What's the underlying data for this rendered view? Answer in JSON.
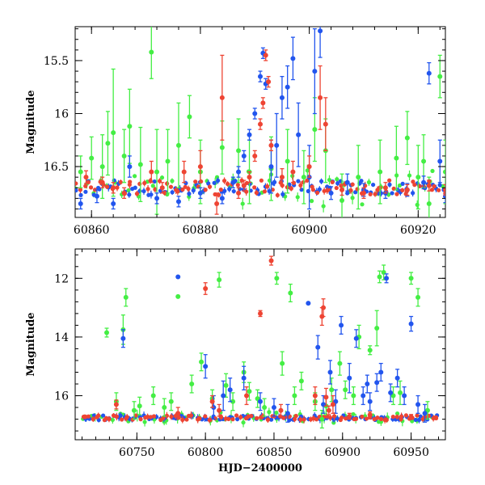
{
  "colors": {
    "green": "#44ee44",
    "blue": "#2255ee",
    "red": "#ee4433"
  },
  "chart_data": [
    {
      "type": "scatter",
      "title": "",
      "xlabel": "",
      "ylabel": "Magnitude",
      "xlim": [
        60857,
        60925
      ],
      "ylim": [
        16.98,
        15.18
      ],
      "xticks": [
        60860,
        60880,
        60900,
        60920
      ],
      "xtick_labels": [
        "60860",
        "60880",
        "60900",
        "60920"
      ],
      "yticks": [
        15.5,
        16,
        16.5
      ],
      "ytick_labels": [
        "15.5",
        "16",
        "16.5"
      ],
      "baseline": {
        "x0": 60857,
        "x1": 60925,
        "y": 16.7,
        "scatter": 0.07
      },
      "series": [
        {
          "name": "green",
          "color_key": "green",
          "points": [
            [
              60858,
              16.55
            ],
            [
              60860,
              16.42
            ],
            [
              60862,
              16.5
            ],
            [
              60863,
              16.28
            ],
            [
              60864,
              16.18
            ],
            [
              60866,
              16.4
            ],
            [
              60867,
              16.12
            ],
            [
              60869,
              16.48
            ],
            [
              60871,
              15.42
            ],
            [
              60872,
              16.55
            ],
            [
              60874,
              16.45
            ],
            [
              60876,
              16.3
            ],
            [
              60878,
              16.03
            ],
            [
              60880,
              16.55
            ],
            [
              60884,
              16.32
            ],
            [
              60887,
              16.35
            ],
            [
              60889,
              16.55
            ],
            [
              60893,
              16.52
            ],
            [
              60896,
              16.45
            ],
            [
              60899,
              16.6
            ],
            [
              60901,
              16.15
            ],
            [
              60903,
              16.35
            ],
            [
              60906,
              16.82
            ],
            [
              60909,
              16.6
            ],
            [
              60913,
              16.55
            ],
            [
              60916,
              16.42
            ],
            [
              60918,
              16.23
            ],
            [
              60920,
              16.6
            ],
            [
              60921,
              16.45
            ],
            [
              60922,
              16.85
            ],
            [
              60924,
              15.65
            ],
            [
              60925,
              16.55
            ]
          ],
          "errors": [
            0.15,
            0.2,
            0.3,
            0.3,
            0.6,
            0.25,
            0.35,
            0.35,
            0.25,
            0.4,
            0.3,
            0.4,
            0.2,
            0.3,
            0.25,
            0.3,
            0.3,
            0.3,
            0.3,
            0.25,
            0.3,
            0.3,
            0.25,
            0.3,
            0.3,
            0.3,
            0.25,
            0.3,
            0.25,
            0.25,
            0.2,
            0.3
          ]
        },
        {
          "name": "blue",
          "color_key": "blue",
          "points": [
            [
              60858,
              16.85
            ],
            [
              60861,
              16.78
            ],
            [
              60864,
              16.85
            ],
            [
              60867,
              16.5
            ],
            [
              60872,
              16.8
            ],
            [
              60876,
              16.83
            ],
            [
              60880,
              16.75
            ],
            [
              60884,
              16.8
            ],
            [
              60886,
              16.65
            ],
            [
              60887,
              16.55
            ],
            [
              60888,
              16.4
            ],
            [
              60889,
              16.2
            ],
            [
              60890,
              16.0
            ],
            [
              60891,
              15.65
            ],
            [
              60891.5,
              15.43
            ],
            [
              60892,
              15.72
            ],
            [
              60893,
              16.5
            ],
            [
              60894,
              16.3
            ],
            [
              60895,
              15.85
            ],
            [
              60896,
              15.75
            ],
            [
              60897,
              15.48
            ],
            [
              60898,
              16.2
            ],
            [
              60900,
              16.6
            ],
            [
              60901,
              15.6
            ],
            [
              60902,
              15.22
            ],
            [
              60904,
              16.75
            ],
            [
              60907,
              16.65
            ],
            [
              60910,
              16.72
            ],
            [
              60914,
              16.75
            ],
            [
              60918,
              16.72
            ],
            [
              60921,
              16.65
            ],
            [
              60922,
              15.62
            ],
            [
              60924,
              16.45
            ],
            [
              60925,
              16.78
            ]
          ],
          "errors": [
            0.05,
            0.06,
            0.05,
            0.1,
            0.05,
            0.05,
            0.05,
            0.05,
            0.05,
            0.05,
            0.05,
            0.05,
            0.05,
            0.05,
            0.05,
            0.05,
            0.25,
            0.3,
            0.2,
            0.2,
            0.2,
            0.3,
            0.3,
            0.4,
            0.25,
            0.06,
            0.08,
            0.06,
            0.05,
            0.06,
            0.06,
            0.1,
            0.2,
            0.06
          ]
        },
        {
          "name": "red",
          "color_key": "red",
          "points": [
            [
              60859,
              16.6
            ],
            [
              60862,
              16.65
            ],
            [
              60864,
              16.7
            ],
            [
              60866,
              16.75
            ],
            [
              60871,
              16.55
            ],
            [
              60873,
              16.7
            ],
            [
              60877,
              16.55
            ],
            [
              60880,
              16.5
            ],
            [
              60883,
              16.85
            ],
            [
              60884,
              15.85
            ],
            [
              60887,
              16.75
            ],
            [
              60888,
              16.68
            ],
            [
              60889,
              16.6
            ],
            [
              60890,
              16.4
            ],
            [
              60891,
              16.1
            ],
            [
              60891.5,
              15.9
            ],
            [
              60892,
              15.45
            ],
            [
              60892.5,
              15.7
            ],
            [
              60893,
              16.3
            ],
            [
              60895,
              16.6
            ],
            [
              60897,
              16.55
            ],
            [
              60900,
              16.5
            ],
            [
              60902,
              15.85
            ],
            [
              60903,
              16.1
            ],
            [
              60906,
              16.72
            ],
            [
              60910,
              16.75
            ],
            [
              60914,
              16.7
            ],
            [
              60918,
              16.72
            ],
            [
              60922,
              16.68
            ],
            [
              60925,
              16.72
            ]
          ],
          "errors": [
            0.06,
            0.05,
            0.05,
            0.05,
            0.1,
            0.05,
            0.1,
            0.15,
            0.1,
            0.4,
            0.05,
            0.05,
            0.05,
            0.05,
            0.05,
            0.05,
            0.05,
            0.05,
            0.05,
            0.08,
            0.1,
            0.1,
            0.3,
            0.25,
            0.05,
            0.05,
            0.05,
            0.05,
            0.05,
            0.05
          ]
        }
      ]
    },
    {
      "type": "scatter",
      "title": "",
      "xlabel": "HJD−2400000",
      "ylabel": "Magnitude",
      "xlim": [
        60705,
        60975
      ],
      "ylim": [
        17.5,
        11
      ],
      "xticks": [
        60750,
        60800,
        60850,
        60900,
        60950
      ],
      "xtick_labels": [
        "60750",
        "60800",
        "60850",
        "60900",
        "60950"
      ],
      "yticks": [
        12,
        14,
        16
      ],
      "ytick_labels": [
        "12",
        "14",
        "16"
      ],
      "baseline": {
        "x0": 60710,
        "x1": 60970,
        "y": 16.75,
        "scatter": 0.08
      },
      "series": [
        {
          "name": "green",
          "color_key": "green",
          "points": [
            [
              60728,
              13.85
            ],
            [
              60735,
              16.2
            ],
            [
              60740,
              13.75
            ],
            [
              60742,
              12.65
            ],
            [
              60748,
              16.5
            ],
            [
              60752,
              16.35
            ],
            [
              60762,
              16.0
            ],
            [
              60770,
              16.4
            ],
            [
              60775,
              16.2
            ],
            [
              60780,
              12.62
            ],
            [
              60790,
              15.6
            ],
            [
              60797,
              14.85
            ],
            [
              60805,
              16.1
            ],
            [
              60810,
              12.05
            ],
            [
              60815,
              15.65
            ],
            [
              60820,
              16.2
            ],
            [
              60828,
              15.2
            ],
            [
              60832,
              15.85
            ],
            [
              60838,
              16.1
            ],
            [
              60843,
              16.4
            ],
            [
              60852,
              12.0
            ],
            [
              60856,
              14.9
            ],
            [
              60862,
              12.5
            ],
            [
              60865,
              16.0
            ],
            [
              60870,
              15.5
            ],
            [
              60880,
              16.2
            ],
            [
              60885,
              16.8
            ],
            [
              60888,
              16.35
            ],
            [
              60892,
              15.8
            ],
            [
              60898,
              14.9
            ],
            [
              60902,
              15.8
            ],
            [
              60908,
              16.0
            ],
            [
              60912,
              14.0
            ],
            [
              60920,
              14.45
            ],
            [
              60925,
              13.7
            ],
            [
              60927,
              11.95
            ],
            [
              60930,
              11.8
            ],
            [
              60937,
              16.0
            ],
            [
              60942,
              15.9
            ],
            [
              60950,
              12.0
            ],
            [
              60955,
              12.65
            ],
            [
              60962,
              16.5
            ]
          ],
          "errors": [
            0.15,
            0.3,
            0.5,
            0.3,
            0.3,
            0.3,
            0.3,
            0.3,
            0.3,
            0.0,
            0.3,
            0.3,
            0.3,
            0.25,
            0.4,
            0.3,
            0.35,
            0.3,
            0.3,
            0.3,
            0.2,
            0.4,
            0.3,
            0.3,
            0.3,
            0.3,
            0.3,
            0.3,
            0.4,
            0.4,
            0.3,
            0.3,
            0.4,
            0.15,
            0.6,
            0.2,
            0.25,
            0.3,
            0.4,
            0.2,
            0.3,
            0.3
          ]
        },
        {
          "name": "blue",
          "color_key": "blue",
          "points": [
            [
              60740,
              14.05
            ],
            [
              60780,
              11.95
            ],
            [
              60800,
              15.0
            ],
            [
              60806,
              16.4
            ],
            [
              60813,
              16.0
            ],
            [
              60818,
              15.8
            ],
            [
              60828,
              15.4
            ],
            [
              60840,
              16.2
            ],
            [
              60850,
              16.4
            ],
            [
              60860,
              16.6
            ],
            [
              60875,
              12.85
            ],
            [
              60882,
              14.35
            ],
            [
              60886,
              16.3
            ],
            [
              60891,
              15.2
            ],
            [
              60895,
              16.2
            ],
            [
              60899,
              13.6
            ],
            [
              60905,
              15.4
            ],
            [
              60910,
              14.05
            ],
            [
              60915,
              16.0
            ],
            [
              60918,
              15.6
            ],
            [
              60920,
              16.2
            ],
            [
              60925,
              15.55
            ],
            [
              60928,
              15.2
            ],
            [
              60932,
              12.0
            ],
            [
              60935,
              15.9
            ],
            [
              60940,
              15.4
            ],
            [
              60945,
              16.0
            ],
            [
              60950,
              13.55
            ],
            [
              60955,
              16.3
            ],
            [
              60960,
              16.6
            ]
          ],
          "errors": [
            0.3,
            0.0,
            0.4,
            0.4,
            0.5,
            0.4,
            0.4,
            0.3,
            0.3,
            0.3,
            0.0,
            0.4,
            0.3,
            0.4,
            0.4,
            0.3,
            0.5,
            0.3,
            0.3,
            0.3,
            0.3,
            0.3,
            0.3,
            0.15,
            0.3,
            0.3,
            0.3,
            0.25,
            0.3,
            0.3
          ]
        },
        {
          "name": "red",
          "color_key": "red",
          "points": [
            [
              60712,
              16.72
            ],
            [
              60735,
              16.3
            ],
            [
              60780,
              16.6
            ],
            [
              60800,
              12.35
            ],
            [
              60805,
              16.2
            ],
            [
              60810,
              16.5
            ],
            [
              60830,
              16.0
            ],
            [
              60840,
              13.2
            ],
            [
              60848,
              11.4
            ],
            [
              60855,
              16.5
            ],
            [
              60880,
              16.0
            ],
            [
              60885,
              13.3
            ],
            [
              60886,
              13.0
            ],
            [
              60888,
              16.05
            ],
            [
              60890,
              16.5
            ],
            [
              60893,
              16.3
            ],
            [
              60905,
              16.7
            ],
            [
              60920,
              16.65
            ],
            [
              60950,
              16.72
            ],
            [
              60968,
              16.75
            ]
          ],
          "errors": [
            0.05,
            0.15,
            0.2,
            0.2,
            0.2,
            0.2,
            0.3,
            0.1,
            0.15,
            0.2,
            0.3,
            0.3,
            0.3,
            0.3,
            0.15,
            0.3,
            0.1,
            0.1,
            0.08,
            0.05
          ]
        }
      ]
    }
  ]
}
